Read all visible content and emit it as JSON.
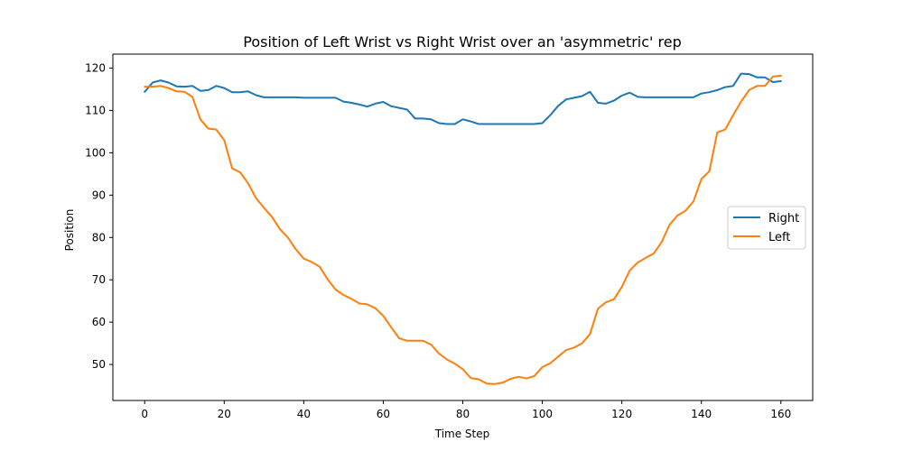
{
  "chart_data": {
    "type": "line",
    "title": "Position of Left Wrist vs Right Wrist over an 'asymmetric' rep",
    "xlabel": "Time Step",
    "ylabel": "Position",
    "xlim": [
      -8,
      168
    ],
    "ylim": [
      41.5,
      123.3
    ],
    "xticks": [
      0,
      20,
      40,
      60,
      80,
      100,
      120,
      140,
      160
    ],
    "yticks": [
      50,
      60,
      70,
      80,
      90,
      100,
      110,
      120
    ],
    "grid": false,
    "legend_position": "center-right",
    "series": [
      {
        "name": "Right",
        "color": "#1f77b4",
        "points": [
          [
            0,
            114.4
          ],
          [
            2,
            116.6
          ],
          [
            4,
            117.1
          ],
          [
            6,
            116.6
          ],
          [
            8,
            115.7
          ],
          [
            10,
            115.6
          ],
          [
            12,
            115.8
          ],
          [
            14,
            114.6
          ],
          [
            16,
            114.8
          ],
          [
            18,
            115.8
          ],
          [
            20,
            115.3
          ],
          [
            22,
            114.3
          ],
          [
            24,
            114.3
          ],
          [
            26,
            114.5
          ],
          [
            28,
            113.6
          ],
          [
            30,
            113.1
          ],
          [
            32,
            113.1
          ],
          [
            34,
            113.1
          ],
          [
            36,
            113.1
          ],
          [
            38,
            113.1
          ],
          [
            40,
            113.0
          ],
          [
            42,
            113.0
          ],
          [
            44,
            113.0
          ],
          [
            46,
            113.0
          ],
          [
            48,
            113.0
          ],
          [
            50,
            112.1
          ],
          [
            52,
            111.8
          ],
          [
            54,
            111.4
          ],
          [
            56,
            110.9
          ],
          [
            58,
            111.6
          ],
          [
            60,
            112.0
          ],
          [
            62,
            111.0
          ],
          [
            64,
            110.6
          ],
          [
            66,
            110.2
          ],
          [
            68,
            108.1
          ],
          [
            70,
            108.1
          ],
          [
            72,
            107.9
          ],
          [
            74,
            107.0
          ],
          [
            76,
            106.8
          ],
          [
            78,
            106.8
          ],
          [
            80,
            107.9
          ],
          [
            82,
            107.4
          ],
          [
            84,
            106.8
          ],
          [
            86,
            106.8
          ],
          [
            88,
            106.8
          ],
          [
            90,
            106.8
          ],
          [
            92,
            106.8
          ],
          [
            94,
            106.8
          ],
          [
            96,
            106.8
          ],
          [
            98,
            106.8
          ],
          [
            100,
            107.0
          ],
          [
            102,
            108.9
          ],
          [
            104,
            111.1
          ],
          [
            106,
            112.6
          ],
          [
            108,
            113.0
          ],
          [
            110,
            113.4
          ],
          [
            112,
            114.4
          ],
          [
            114,
            111.8
          ],
          [
            116,
            111.6
          ],
          [
            118,
            112.3
          ],
          [
            120,
            113.5
          ],
          [
            122,
            114.2
          ],
          [
            124,
            113.2
          ],
          [
            126,
            113.1
          ],
          [
            128,
            113.1
          ],
          [
            130,
            113.1
          ],
          [
            132,
            113.1
          ],
          [
            134,
            113.1
          ],
          [
            136,
            113.1
          ],
          [
            138,
            113.1
          ],
          [
            140,
            114.0
          ],
          [
            142,
            114.3
          ],
          [
            144,
            114.8
          ],
          [
            146,
            115.5
          ],
          [
            148,
            115.8
          ],
          [
            150,
            118.7
          ],
          [
            152,
            118.6
          ],
          [
            154,
            117.8
          ],
          [
            156,
            117.8
          ],
          [
            158,
            116.7
          ],
          [
            160,
            116.9
          ]
        ]
      },
      {
        "name": "Left",
        "color": "#ff7f0e",
        "points": [
          [
            0,
            115.6
          ],
          [
            2,
            115.6
          ],
          [
            4,
            115.8
          ],
          [
            6,
            115.3
          ],
          [
            8,
            114.5
          ],
          [
            10,
            114.4
          ],
          [
            12,
            113.2
          ],
          [
            14,
            107.9
          ],
          [
            16,
            105.7
          ],
          [
            18,
            105.5
          ],
          [
            20,
            103.0
          ],
          [
            22,
            96.3
          ],
          [
            24,
            95.4
          ],
          [
            26,
            92.8
          ],
          [
            28,
            89.3
          ],
          [
            30,
            87.0
          ],
          [
            32,
            84.9
          ],
          [
            34,
            82.0
          ],
          [
            36,
            80.0
          ],
          [
            38,
            77.2
          ],
          [
            40,
            75.0
          ],
          [
            42,
            74.2
          ],
          [
            44,
            73.1
          ],
          [
            46,
            70.1
          ],
          [
            48,
            67.7
          ],
          [
            50,
            66.4
          ],
          [
            52,
            65.5
          ],
          [
            54,
            64.4
          ],
          [
            56,
            64.2
          ],
          [
            58,
            63.3
          ],
          [
            60,
            61.5
          ],
          [
            62,
            58.8
          ],
          [
            64,
            56.2
          ],
          [
            66,
            55.6
          ],
          [
            68,
            55.6
          ],
          [
            70,
            55.6
          ],
          [
            72,
            54.7
          ],
          [
            74,
            52.6
          ],
          [
            76,
            51.2
          ],
          [
            78,
            50.2
          ],
          [
            80,
            48.9
          ],
          [
            82,
            46.8
          ],
          [
            84,
            46.5
          ],
          [
            86,
            45.5
          ],
          [
            88,
            45.4
          ],
          [
            90,
            45.7
          ],
          [
            92,
            46.6
          ],
          [
            94,
            47.1
          ],
          [
            96,
            46.7
          ],
          [
            98,
            47.3
          ],
          [
            100,
            49.4
          ],
          [
            102,
            50.3
          ],
          [
            104,
            51.9
          ],
          [
            106,
            53.4
          ],
          [
            108,
            54.0
          ],
          [
            110,
            55.0
          ],
          [
            112,
            57.2
          ],
          [
            114,
            63.2
          ],
          [
            116,
            64.7
          ],
          [
            118,
            65.4
          ],
          [
            120,
            68.3
          ],
          [
            122,
            72.2
          ],
          [
            124,
            74.1
          ],
          [
            126,
            75.2
          ],
          [
            128,
            76.2
          ],
          [
            130,
            78.9
          ],
          [
            132,
            83.0
          ],
          [
            134,
            85.2
          ],
          [
            136,
            86.3
          ],
          [
            138,
            88.5
          ],
          [
            140,
            93.8
          ],
          [
            142,
            95.6
          ],
          [
            144,
            104.8
          ],
          [
            146,
            105.5
          ],
          [
            148,
            108.9
          ],
          [
            150,
            112.1
          ],
          [
            152,
            114.8
          ],
          [
            154,
            115.8
          ],
          [
            156,
            115.8
          ],
          [
            158,
            118.0
          ],
          [
            160,
            118.2
          ]
        ]
      }
    ]
  }
}
